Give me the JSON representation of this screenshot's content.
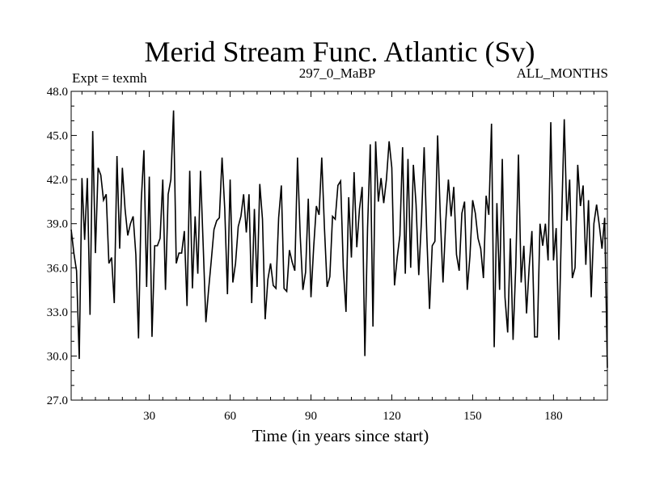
{
  "chart_data": {
    "type": "line",
    "title": "Merid Stream Func. Atlantic (Sv)",
    "subtitle_left": "Expt = texmh",
    "subtitle_center": "297_0_MaBP",
    "subtitle_right": "ALL_MONTHS",
    "xlabel": "Time (in years since start)",
    "ylabel": "",
    "xlim": [
      1,
      200
    ],
    "ylim": [
      27.0,
      48.0
    ],
    "x_ticks": [
      30,
      60,
      90,
      120,
      150,
      180
    ],
    "x_tick_labels": [
      "30",
      "60",
      "90",
      "120",
      "150",
      "180"
    ],
    "y_ticks": [
      27,
      30,
      33,
      36,
      39,
      42,
      45,
      48
    ],
    "y_tick_labels": [
      "27.0",
      "30.0",
      "33.0",
      "36.0",
      "39.0",
      "42.0",
      "45.0",
      "48.0"
    ],
    "x": [
      1,
      2,
      3,
      4,
      5,
      6,
      7,
      8,
      9,
      10,
      11,
      12,
      13,
      14,
      15,
      16,
      17,
      18,
      19,
      20,
      21,
      22,
      23,
      24,
      25,
      26,
      27,
      28,
      29,
      30,
      31,
      32,
      33,
      34,
      35,
      36,
      37,
      38,
      39,
      40,
      41,
      42,
      43,
      44,
      45,
      46,
      47,
      48,
      49,
      50,
      51,
      52,
      53,
      54,
      55,
      56,
      57,
      58,
      59,
      60,
      61,
      62,
      63,
      64,
      65,
      66,
      67,
      68,
      69,
      70,
      71,
      72,
      73,
      74,
      75,
      76,
      77,
      78,
      79,
      80,
      81,
      82,
      83,
      84,
      85,
      86,
      87,
      88,
      89,
      90,
      91,
      92,
      93,
      94,
      95,
      96,
      97,
      98,
      99,
      100,
      101,
      102,
      103,
      104,
      105,
      106,
      107,
      108,
      109,
      110,
      111,
      112,
      113,
      114,
      115,
      116,
      117,
      118,
      119,
      120,
      121,
      122,
      123,
      124,
      125,
      126,
      127,
      128,
      129,
      130,
      131,
      132,
      133,
      134,
      135,
      136,
      137,
      138,
      139,
      140,
      141,
      142,
      143,
      144,
      145,
      146,
      147,
      148,
      149,
      150,
      151,
      152,
      153,
      154,
      155,
      156,
      157,
      158,
      159,
      160,
      161,
      162,
      163,
      164,
      165,
      166,
      167,
      168,
      169,
      170,
      171,
      172,
      173,
      174,
      175,
      176,
      177,
      178,
      179,
      180,
      181,
      182,
      183,
      184,
      185,
      186,
      187,
      188,
      189,
      190,
      191,
      192,
      193,
      194,
      195,
      196,
      197,
      198,
      199,
      200
    ],
    "series": [
      {
        "name": "Merid Stream Func. Atlantic",
        "values": [
          38.6,
          37.0,
          35.8,
          29.8,
          42.1,
          37.9,
          42.1,
          32.8,
          45.3,
          37.0,
          42.8,
          42.3,
          40.6,
          41.0,
          36.3,
          36.7,
          33.6,
          43.6,
          37.3,
          42.8,
          40.0,
          38.2,
          39.0,
          39.5,
          36.9,
          31.2,
          40.5,
          44.0,
          34.7,
          42.2,
          31.3,
          37.5,
          37.5,
          38.0,
          42.0,
          34.5,
          41.0,
          42.0,
          46.7,
          36.3,
          37.0,
          37.0,
          38.5,
          33.4,
          42.6,
          34.6,
          39.5,
          35.6,
          42.6,
          37.5,
          32.3,
          34.5,
          36.5,
          38.6,
          39.2,
          39.4,
          43.5,
          40.0,
          34.2,
          42.0,
          35.0,
          36.3,
          38.8,
          39.5,
          41.0,
          38.4,
          41.0,
          33.6,
          40.0,
          34.7,
          41.7,
          39.3,
          32.5,
          35.2,
          36.3,
          34.8,
          34.6,
          39.4,
          41.6,
          34.6,
          34.4,
          37.2,
          36.4,
          35.8,
          43.5,
          38.2,
          34.5,
          35.7,
          40.7,
          34.0,
          37.4,
          40.2,
          39.6,
          43.5,
          38.7,
          34.7,
          35.4,
          39.5,
          39.3,
          41.6,
          41.9,
          36.0,
          33.0,
          40.8,
          36.7,
          42.5,
          37.4,
          40.0,
          41.5,
          30.0,
          38.7,
          44.4,
          32.0,
          44.6,
          40.5,
          42.1,
          40.4,
          42.0,
          44.6,
          42.8,
          34.8,
          36.7,
          38.2,
          44.2,
          35.6,
          43.4,
          36.0,
          43.0,
          40.3,
          35.5,
          39.2,
          44.2,
          38.1,
          33.2,
          37.5,
          37.8,
          45.0,
          39.5,
          35.0,
          39.1,
          42.0,
          39.5,
          41.5,
          36.9,
          35.8,
          39.7,
          40.5,
          34.5,
          36.8,
          40.6,
          39.7,
          38.0,
          37.3,
          35.3,
          40.9,
          39.6,
          45.8,
          30.6,
          40.4,
          34.5,
          43.4,
          34.0,
          31.6,
          38.0,
          31.1,
          36.1,
          43.7,
          35.0,
          37.5,
          32.9,
          36.1,
          38.5,
          31.3,
          31.3,
          39.0,
          37.5,
          39.0,
          36.5,
          45.9,
          36.5,
          38.7,
          31.1,
          39.1,
          46.1,
          39.2,
          42.0,
          35.3,
          36.0,
          43.0,
          40.2,
          41.6,
          36.2,
          40.6,
          34.0,
          39.0,
          40.3,
          38.9,
          37.3,
          39.4,
          29.2
        ]
      }
    ]
  }
}
